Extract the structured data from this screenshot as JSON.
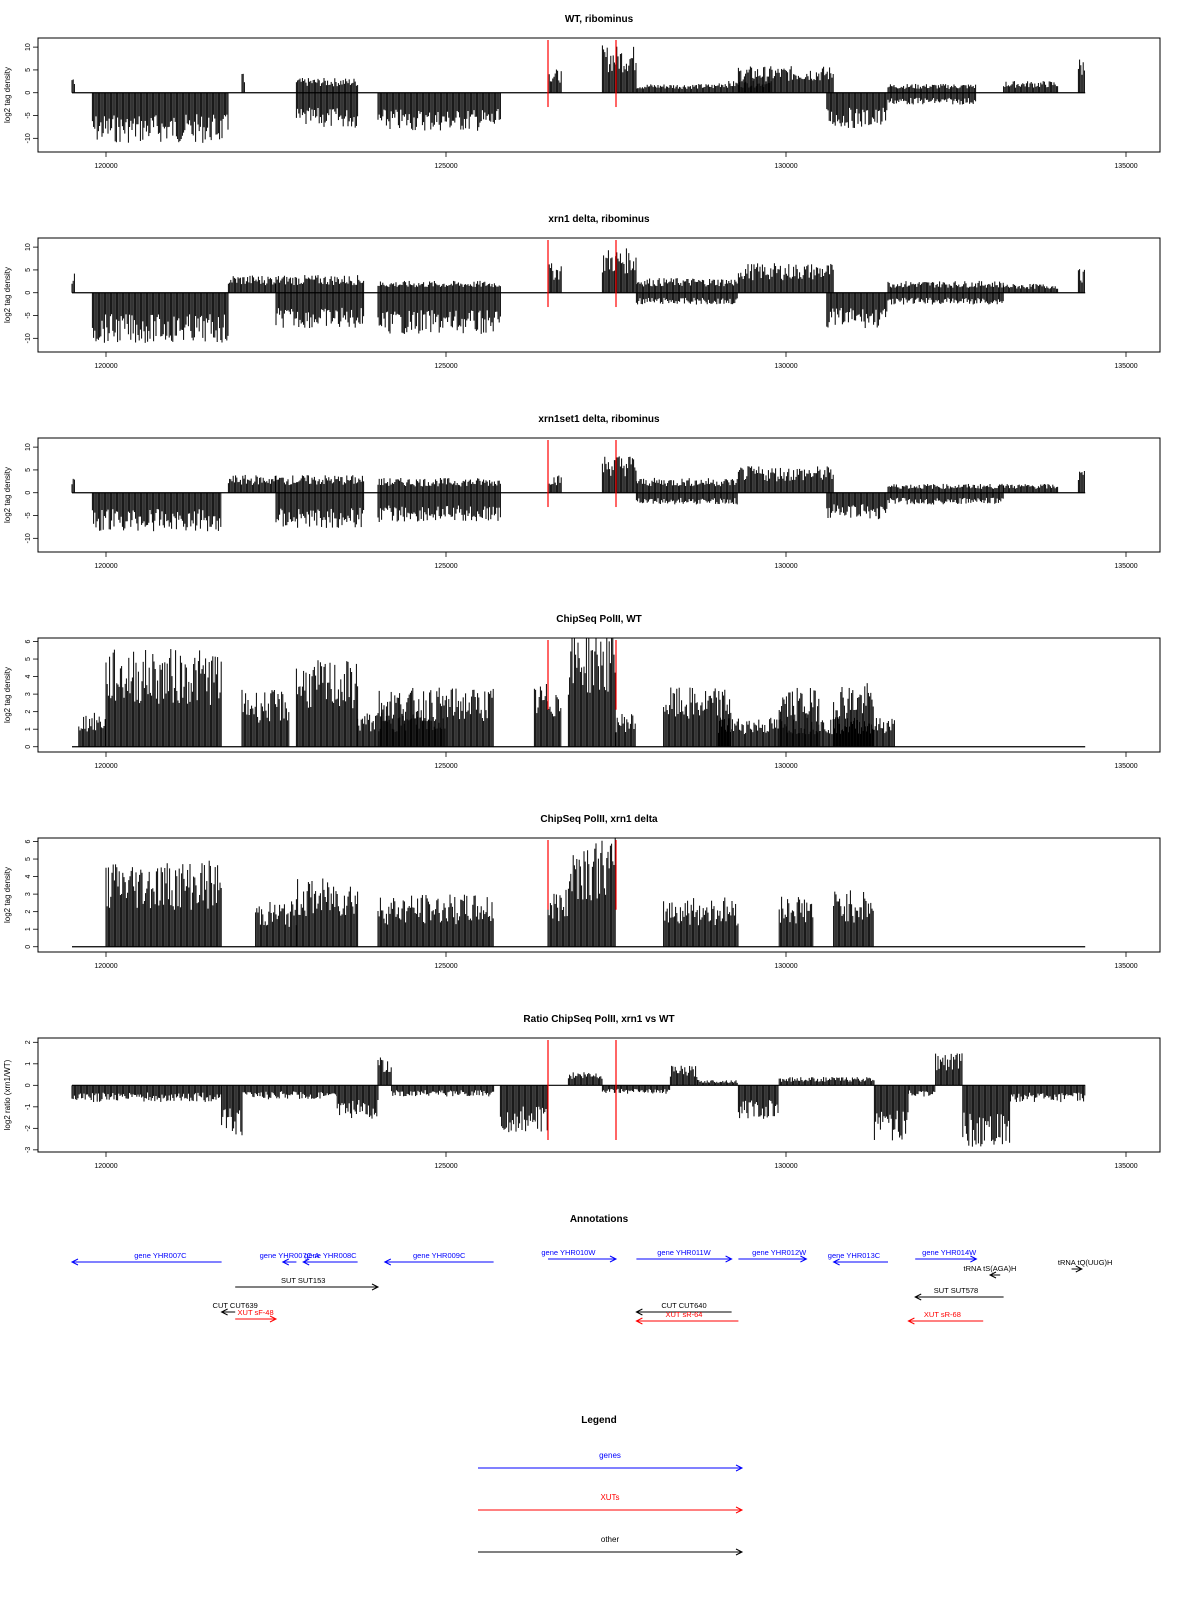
{
  "chart_data": {
    "type": "area",
    "x_range": [
      119000,
      135500
    ],
    "x_ticks": [
      120000,
      125000,
      130000,
      135000
    ],
    "x_tick_labels": [
      "120000",
      "125000",
      "130000",
      "135000"
    ],
    "highlight_lines": {
      "color": "#ff0000",
      "positions": [
        126500,
        127500
      ]
    },
    "panels": [
      {
        "title": "WT, ribominus",
        "ylabel": "log2 tag density",
        "ylim": [
          -13,
          12
        ],
        "y_ticks": [
          10,
          5,
          0,
          -5,
          -10
        ],
        "y_tick_labels": [
          "10",
          "5",
          "0",
          "-5",
          "-10"
        ],
        "regions": [
          {
            "x": [
              119500,
              119550
            ],
            "level": 3
          },
          {
            "x": [
              119800,
              121800
            ],
            "level": -8.5
          },
          {
            "x": [
              122000,
              122050
            ],
            "level": 3.5
          },
          {
            "x": [
              122800,
              123700
            ],
            "level": -6
          },
          {
            "x": [
              122800,
              123700
            ],
            "level": 2.5
          },
          {
            "x": [
              124000,
              125800
            ],
            "level": -6.5
          },
          {
            "x": [
              126500,
              126700
            ],
            "level": 4
          },
          {
            "x": [
              127300,
              127800
            ],
            "level": 8
          },
          {
            "x": [
              127800,
              129000
            ],
            "level": 1.5
          },
          {
            "x": [
              129000,
              129800
            ],
            "level": 2
          },
          {
            "x": [
              129300,
              130700
            ],
            "level": 4.5
          },
          {
            "x": [
              130600,
              131500
            ],
            "level": -6
          },
          {
            "x": [
              131500,
              132800
            ],
            "level": 1.5
          },
          {
            "x": [
              131500,
              132800
            ],
            "level": -2
          },
          {
            "x": [
              133200,
              134000
            ],
            "level": 2
          },
          {
            "x": [
              134300,
              134400
            ],
            "level": 6
          }
        ]
      },
      {
        "title": "xrn1 delta, ribominus",
        "ylabel": "log2 tag density",
        "ylim": [
          -13,
          12
        ],
        "y_ticks": [
          10,
          5,
          0,
          -5,
          -10
        ],
        "y_tick_labels": [
          "10",
          "5",
          "0",
          "-5",
          "-10"
        ],
        "regions": [
          {
            "x": [
              119500,
              119550
            ],
            "level": 3.5
          },
          {
            "x": [
              119800,
              121800
            ],
            "level": -8.5
          },
          {
            "x": [
              121800,
              122500
            ],
            "level": 3
          },
          {
            "x": [
              122500,
              123800
            ],
            "level": -6
          },
          {
            "x": [
              122500,
              123800
            ],
            "level": 3
          },
          {
            "x": [
              124000,
              125800
            ],
            "level": -7
          },
          {
            "x": [
              124000,
              125800
            ],
            "level": 2
          },
          {
            "x": [
              126500,
              126700
            ],
            "level": 5
          },
          {
            "x": [
              127300,
              127800
            ],
            "level": 7.5
          },
          {
            "x": [
              127800,
              129300
            ],
            "level": 2.5
          },
          {
            "x": [
              127800,
              129300
            ],
            "level": -2
          },
          {
            "x": [
              129300,
              130700
            ],
            "level": 5
          },
          {
            "x": [
              130600,
              131500
            ],
            "level": -6
          },
          {
            "x": [
              131500,
              133200
            ],
            "level": 2
          },
          {
            "x": [
              131500,
              133200
            ],
            "level": -2
          },
          {
            "x": [
              133200,
              134000
            ],
            "level": 1.5
          },
          {
            "x": [
              134300,
              134400
            ],
            "level": 4
          }
        ]
      },
      {
        "title": "xrn1set1 delta, ribominus",
        "ylabel": "log2 tag density",
        "ylim": [
          -13,
          12
        ],
        "y_ticks": [
          10,
          5,
          0,
          -5,
          -10
        ],
        "y_tick_labels": [
          "10",
          "5",
          "0",
          "-5",
          "-10"
        ],
        "regions": [
          {
            "x": [
              119500,
              119550
            ],
            "level": 2.5
          },
          {
            "x": [
              119800,
              121700
            ],
            "level": -6.5
          },
          {
            "x": [
              121800,
              122500
            ],
            "level": 3
          },
          {
            "x": [
              122500,
              123800
            ],
            "level": -6
          },
          {
            "x": [
              122500,
              123800
            ],
            "level": 3
          },
          {
            "x": [
              124000,
              125800
            ],
            "level": -5
          },
          {
            "x": [
              124000,
              125800
            ],
            "level": 2.5
          },
          {
            "x": [
              126500,
              126700
            ],
            "level": 3
          },
          {
            "x": [
              127300,
              127800
            ],
            "level": 6.5
          },
          {
            "x": [
              127800,
              129300
            ],
            "level": 2.5
          },
          {
            "x": [
              127800,
              129300
            ],
            "level": -2
          },
          {
            "x": [
              129300,
              130700
            ],
            "level": 4.5
          },
          {
            "x": [
              130600,
              131500
            ],
            "level": -4.5
          },
          {
            "x": [
              131500,
              133200
            ],
            "level": 1.5
          },
          {
            "x": [
              131500,
              133200
            ],
            "level": -2
          },
          {
            "x": [
              133200,
              134000
            ],
            "level": 1.5
          },
          {
            "x": [
              134300,
              134400
            ],
            "level": 4
          }
        ]
      },
      {
        "title": "ChipSeq PolII, WT",
        "ylabel": "log2 tag density",
        "ylim": [
          -0.3,
          6.2
        ],
        "y_ticks": [
          0,
          1,
          2,
          3,
          4,
          5,
          6
        ],
        "y_tick_labels": [
          "0",
          "1",
          "2",
          "3",
          "4",
          "5",
          "6"
        ],
        "regions": [
          {
            "x": [
              119600,
              120000
            ],
            "level": 1.5
          },
          {
            "x": [
              120000,
              121700
            ],
            "level": 4.3
          },
          {
            "x": [
              122000,
              122700
            ],
            "level": 2.5
          },
          {
            "x": [
              122800,
              123700
            ],
            "level": 3.8
          },
          {
            "x": [
              123700,
              125000
            ],
            "level": 1.5
          },
          {
            "x": [
              124000,
              125700
            ],
            "level": 2.6
          },
          {
            "x": [
              126300,
              126700
            ],
            "level": 2.8
          },
          {
            "x": [
              126800,
              127500
            ],
            "level": 5.3
          },
          {
            "x": [
              127500,
              127800
            ],
            "level": 1.5
          },
          {
            "x": [
              128200,
              129200
            ],
            "level": 2.6
          },
          {
            "x": [
              129900,
              130500
            ],
            "level": 2.6
          },
          {
            "x": [
              130700,
              131300
            ],
            "level": 2.8
          },
          {
            "x": [
              129000,
              131600
            ],
            "level": 1.3
          }
        ]
      },
      {
        "title": "ChipSeq PolII, xrn1 delta",
        "ylabel": "log2 tag density",
        "ylim": [
          -0.3,
          6.2
        ],
        "y_ticks": [
          0,
          1,
          2,
          3,
          4,
          5,
          6
        ],
        "y_tick_labels": [
          "0",
          "1",
          "2",
          "3",
          "4",
          "5",
          "6"
        ],
        "regions": [
          {
            "x": [
              120000,
              121700
            ],
            "level": 3.8
          },
          {
            "x": [
              122200,
              122800
            ],
            "level": 2
          },
          {
            "x": [
              122800,
              123700
            ],
            "level": 3
          },
          {
            "x": [
              124000,
              125700
            ],
            "level": 2.3
          },
          {
            "x": [
              126500,
              126800
            ],
            "level": 2.5
          },
          {
            "x": [
              126800,
              127500
            ],
            "level": 4.8
          },
          {
            "x": [
              128200,
              129300
            ],
            "level": 2.2
          },
          {
            "x": [
              129900,
              130400
            ],
            "level": 2.3
          },
          {
            "x": [
              130700,
              131300
            ],
            "level": 2.5
          }
        ]
      },
      {
        "title": "Ratio ChipSeq PolII, xrn1 vs WT",
        "ylabel": "log2 ratio (xrn1/WT)",
        "ylim": [
          -3.1,
          2.2
        ],
        "y_ticks": [
          2,
          1,
          0,
          -1,
          -2,
          -3
        ],
        "y_tick_labels": [
          "2",
          "1",
          "0",
          "-1",
          "-2",
          "-3"
        ],
        "regions": [
          {
            "x": [
              119500,
              121700
            ],
            "level": -0.6
          },
          {
            "x": [
              121700,
              122000
            ],
            "level": -1.8
          },
          {
            "x": [
              122000,
              123400
            ],
            "level": -0.5
          },
          {
            "x": [
              123400,
              124000
            ],
            "level": -1.2
          },
          {
            "x": [
              124000,
              124200
            ],
            "level": 1
          },
          {
            "x": [
              124200,
              125700
            ],
            "level": -0.4
          },
          {
            "x": [
              125800,
              126500
            ],
            "level": -1.7
          },
          {
            "x": [
              126800,
              127300
            ],
            "level": 0.5
          },
          {
            "x": [
              127300,
              128300
            ],
            "level": -0.3
          },
          {
            "x": [
              128300,
              128700
            ],
            "level": 0.7
          },
          {
            "x": [
              128700,
              129300
            ],
            "level": 0.2
          },
          {
            "x": [
              129300,
              129900
            ],
            "level": -1.2
          },
          {
            "x": [
              129900,
              131300
            ],
            "level": 0.3
          },
          {
            "x": [
              131300,
              131800
            ],
            "level": -2
          },
          {
            "x": [
              131800,
              132200
            ],
            "level": -0.4
          },
          {
            "x": [
              132200,
              132600
            ],
            "level": 1.2
          },
          {
            "x": [
              132600,
              133300
            ],
            "level": -2.3
          },
          {
            "x": [
              133300,
              134400
            ],
            "level": -0.6
          }
        ]
      }
    ],
    "annotations": {
      "title": "Annotations",
      "features": [
        {
          "label": "gene YHR007C",
          "category": "genes",
          "start": 121700,
          "end": 119500,
          "row": 0,
          "label_x": 120800
        },
        {
          "label": "gene YHR007C-A",
          "category": "genes",
          "start": 122800,
          "end": 122600,
          "row": 0,
          "label_x": 122700
        },
        {
          "label": "gene YHR008C",
          "category": "genes",
          "start": 123700,
          "end": 122900,
          "row": 0,
          "label_x": 123300
        },
        {
          "label": "gene YHR009C",
          "category": "genes",
          "start": 125700,
          "end": 124100,
          "row": 0,
          "label_x": 124900
        },
        {
          "label": "gene YHR010W",
          "category": "genes",
          "start": 126500,
          "end": 127500,
          "row": -0.3,
          "label_x": 126800
        },
        {
          "label": "gene YHR011W",
          "category": "genes",
          "start": 127800,
          "end": 129200,
          "row": -0.3,
          "label_x": 128500
        },
        {
          "label": "gene YHR012W",
          "category": "genes",
          "start": 129300,
          "end": 130300,
          "row": -0.3,
          "label_x": 129900
        },
        {
          "label": "gene YHR013C",
          "category": "genes",
          "start": 131500,
          "end": 130700,
          "row": 0,
          "label_x": 131000
        },
        {
          "label": "gene YHR014W",
          "category": "genes",
          "start": 131900,
          "end": 132800,
          "row": -0.3,
          "label_x": 132400
        },
        {
          "label": "tRNA tS(AGA)H",
          "category": "other",
          "start": 133150,
          "end": 133000,
          "row": 1.3,
          "label_x": 133000
        },
        {
          "label": "tRNA tQ(UUG)H",
          "category": "other",
          "start": 134200,
          "end": 134350,
          "row": 0.7,
          "label_x": 134400
        },
        {
          "label": "SUT SUT153",
          "category": "other",
          "start": 121900,
          "end": 124000,
          "row": 2.5,
          "label_x": 122900
        },
        {
          "label": "SUT SUT578",
          "category": "other",
          "start": 133200,
          "end": 131900,
          "row": 3.5,
          "label_x": 132500
        },
        {
          "label": "CUT CUT639",
          "category": "other",
          "start": 121900,
          "end": 121700,
          "row": 5.0,
          "label_x": 121900
        },
        {
          "label": "XUT sF-48",
          "category": "XUTs",
          "start": 121900,
          "end": 122500,
          "row": 5.7,
          "label_x": 122200
        },
        {
          "label": "CUT CUT640",
          "category": "other",
          "start": 129200,
          "end": 127800,
          "row": 5.0,
          "label_x": 128500
        },
        {
          "label": "XUT sR-64",
          "category": "XUTs",
          "start": 129300,
          "end": 127800,
          "row": 5.9,
          "label_x": 128500
        },
        {
          "label": "XUT sR-68",
          "category": "XUTs",
          "start": 132900,
          "end": 131800,
          "row": 5.9,
          "label_x": 132300
        }
      ]
    },
    "legend": {
      "title": "Legend",
      "entries": [
        {
          "label": "genes",
          "color": "#0000ff"
        },
        {
          "label": "XUTs",
          "color": "#ff0000"
        },
        {
          "label": "other",
          "color": "#000000"
        }
      ]
    }
  }
}
